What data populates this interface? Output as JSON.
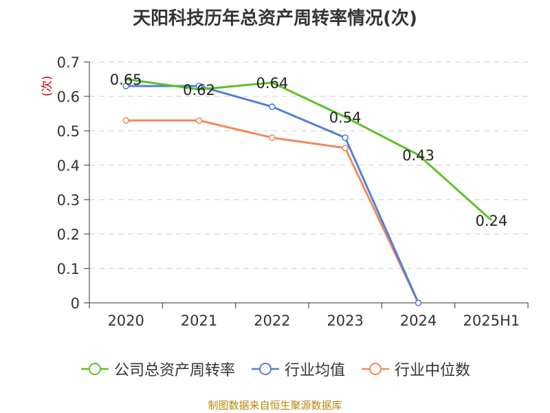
{
  "chart_data": {
    "type": "line",
    "title": "天阳科技历年总资产周转率情况(次)",
    "ylabel": "(次)",
    "xlabel": "",
    "categories": [
      "2020",
      "2021",
      "2022",
      "2023",
      "2024",
      "2025H1"
    ],
    "ylim": [
      0,
      0.7
    ],
    "yticks": [
      "0",
      "0.1",
      "0.2",
      "0.3",
      "0.4",
      "0.5",
      "0.6",
      "0.7"
    ],
    "grid": true,
    "legend_position": "bottom",
    "series": [
      {
        "name": "公司总资产周转率",
        "color": "#5bc226",
        "values": [
          0.65,
          0.62,
          0.64,
          0.54,
          0.43,
          0.24
        ],
        "labels": [
          "0.65",
          "0.62",
          "0.64",
          "0.54",
          "0.43",
          "0.24"
        ]
      },
      {
        "name": "行业均值",
        "color": "#4f7fd8",
        "values": [
          0.63,
          0.63,
          0.57,
          0.48,
          0.0,
          null
        ]
      },
      {
        "name": "行业中位数",
        "color": "#f4875a",
        "values": [
          0.53,
          0.53,
          0.48,
          0.45,
          0.0,
          null
        ]
      }
    ]
  },
  "source_note": "制图数据来自恒生聚源数据库"
}
